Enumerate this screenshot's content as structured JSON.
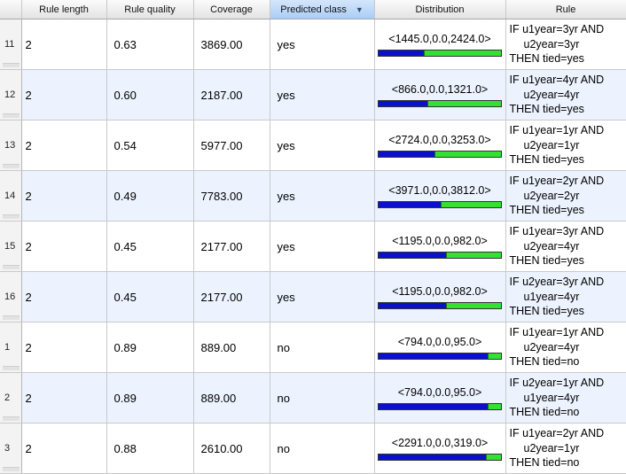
{
  "columns": {
    "index": "",
    "rule_length": "Rule length",
    "rule_quality": "Rule quality",
    "coverage": "Coverage",
    "predicted_class": "Predicted class",
    "distribution": "Distribution",
    "rule": "Rule"
  },
  "sort_indicator": "▼",
  "rows": [
    {
      "idx": "11",
      "len": "2",
      "quality": "0.63",
      "coverage": "3869.00",
      "cls": "yes",
      "dist": "<1445.0,0.0,2424.0>",
      "blue_frac": 0.373,
      "rule": [
        "IF u1year=3yr AND",
        "u2year=3yr",
        "THEN tied=yes"
      ]
    },
    {
      "idx": "12",
      "len": "2",
      "quality": "0.60",
      "coverage": "2187.00",
      "cls": "yes",
      "dist": "<866.0,0.0,1321.0>",
      "blue_frac": 0.396,
      "rule": [
        "IF u1year=4yr AND",
        "u2year=4yr",
        "THEN tied=yes"
      ]
    },
    {
      "idx": "13",
      "len": "2",
      "quality": "0.54",
      "coverage": "5977.00",
      "cls": "yes",
      "dist": "<2724.0,0.0,3253.0>",
      "blue_frac": 0.456,
      "rule": [
        "IF u1year=1yr AND",
        "u2year=1yr",
        "THEN tied=yes"
      ]
    },
    {
      "idx": "14",
      "len": "2",
      "quality": "0.49",
      "coverage": "7783.00",
      "cls": "yes",
      "dist": "<3971.0,0.0,3812.0>",
      "blue_frac": 0.51,
      "rule": [
        "IF u1year=2yr AND",
        "u2year=2yr",
        "THEN tied=yes"
      ]
    },
    {
      "idx": "15",
      "len": "2",
      "quality": "0.45",
      "coverage": "2177.00",
      "cls": "yes",
      "dist": "<1195.0,0.0,982.0>",
      "blue_frac": 0.549,
      "rule": [
        "IF u1year=3yr AND",
        "u2year=4yr",
        "THEN tied=yes"
      ]
    },
    {
      "idx": "16",
      "len": "2",
      "quality": "0.45",
      "coverage": "2177.00",
      "cls": "yes",
      "dist": "<1195.0,0.0,982.0>",
      "blue_frac": 0.549,
      "rule": [
        "IF u2year=3yr AND",
        "u1year=4yr",
        "THEN tied=yes"
      ]
    },
    {
      "idx": "1",
      "len": "2",
      "quality": "0.89",
      "coverage": "889.00",
      "cls": "no",
      "dist": "<794.0,0.0,95.0>",
      "blue_frac": 0.893,
      "rule": [
        "IF u1year=1yr AND",
        "u2year=4yr",
        "THEN tied=no"
      ]
    },
    {
      "idx": "2",
      "len": "2",
      "quality": "0.89",
      "coverage": "889.00",
      "cls": "no",
      "dist": "<794.0,0.0,95.0>",
      "blue_frac": 0.893,
      "rule": [
        "IF u2year=1yr AND",
        "u1year=4yr",
        "THEN tied=no"
      ]
    },
    {
      "idx": "3",
      "len": "2",
      "quality": "0.88",
      "coverage": "2610.00",
      "cls": "no",
      "dist": "<2291.0,0.0,319.0>",
      "blue_frac": 0.878,
      "rule": [
        "IF u1year=2yr AND",
        "u2year=1yr",
        "THEN tied=no"
      ]
    }
  ],
  "colors": {
    "bar_majority": "#0a10cc",
    "bar_minority": "#35e035",
    "row_alt": "#edf3fe",
    "header_sorted": "#aacdf5"
  }
}
